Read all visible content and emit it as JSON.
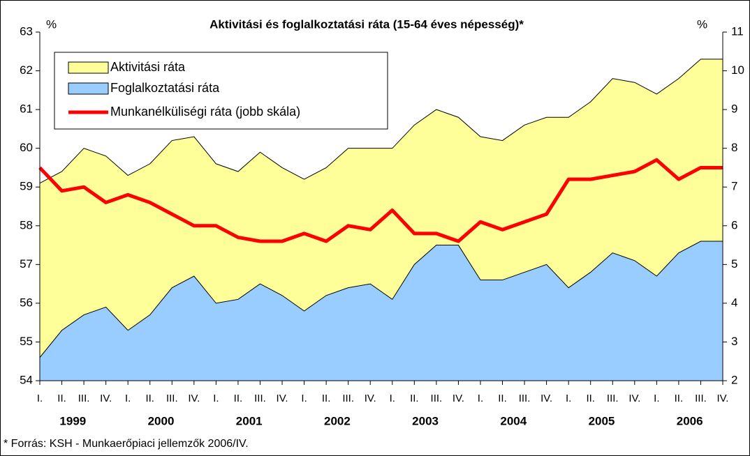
{
  "chart_data": {
    "type": "area-line",
    "title": "Aktivitási és foglalkoztatási ráta (15-64 éves népesség)*",
    "y_unit": "%",
    "y2_unit": "%",
    "footnote": "* Forrás: KSH - Munkaerőpiaci jellemzők 2006/IV.",
    "categories": [
      "I.",
      "II.",
      "III.",
      "IV.",
      "I.",
      "II.",
      "III.",
      "IV.",
      "I.",
      "II.",
      "III.",
      "IV.",
      "I.",
      "II.",
      "III.",
      "IV.",
      "I.",
      "II.",
      "III.",
      "IV.",
      "I.",
      "II.",
      "III.",
      "IV.",
      "I.",
      "II.",
      "III.",
      "IV.",
      "I.",
      "II.",
      "III.",
      "IV."
    ],
    "years": [
      "1999",
      "2000",
      "2001",
      "2002",
      "2003",
      "2004",
      "2005",
      "2006"
    ],
    "series": [
      {
        "name": "Aktivitási ráta",
        "color": "#ffff99",
        "kind": "area",
        "values": [
          59.1,
          59.4,
          60.0,
          59.8,
          59.3,
          59.6,
          60.2,
          60.3,
          59.6,
          59.4,
          59.9,
          59.5,
          59.2,
          59.5,
          60.0,
          60.0,
          60.0,
          60.6,
          61.0,
          60.8,
          60.3,
          60.2,
          60.6,
          60.8,
          60.8,
          61.2,
          61.8,
          61.7,
          61.4,
          61.8,
          62.3,
          62.3
        ]
      },
      {
        "name": "Foglalkoztatási ráta",
        "color": "#99ccff",
        "kind": "area",
        "values": [
          54.6,
          55.3,
          55.7,
          55.9,
          55.3,
          55.7,
          56.4,
          56.7,
          56.0,
          56.1,
          56.5,
          56.2,
          55.8,
          56.2,
          56.4,
          56.5,
          56.1,
          57.0,
          57.5,
          57.5,
          56.6,
          56.6,
          56.8,
          57.0,
          56.4,
          56.8,
          57.3,
          57.1,
          56.7,
          57.3,
          57.6,
          57.6
        ]
      },
      {
        "name": "Munkanélküliségi ráta (jobb skála)",
        "color": "#ff0000",
        "kind": "line",
        "axis": "y2",
        "values": [
          7.5,
          6.9,
          7.0,
          6.6,
          6.8,
          6.6,
          6.3,
          6.0,
          6.0,
          5.7,
          5.6,
          5.6,
          5.8,
          5.6,
          6.0,
          5.9,
          6.4,
          5.8,
          5.8,
          5.6,
          6.1,
          5.9,
          6.1,
          6.3,
          7.2,
          7.2,
          7.3,
          7.4,
          7.7,
          7.2,
          7.5,
          7.5
        ]
      }
    ],
    "ylim": [
      54,
      63
    ],
    "yticks": [
      54,
      55,
      56,
      57,
      58,
      59,
      60,
      61,
      62,
      63
    ],
    "y2lim": [
      2,
      11
    ],
    "y2ticks": [
      2,
      3,
      4,
      5,
      6,
      7,
      8,
      9,
      10,
      11
    ]
  }
}
